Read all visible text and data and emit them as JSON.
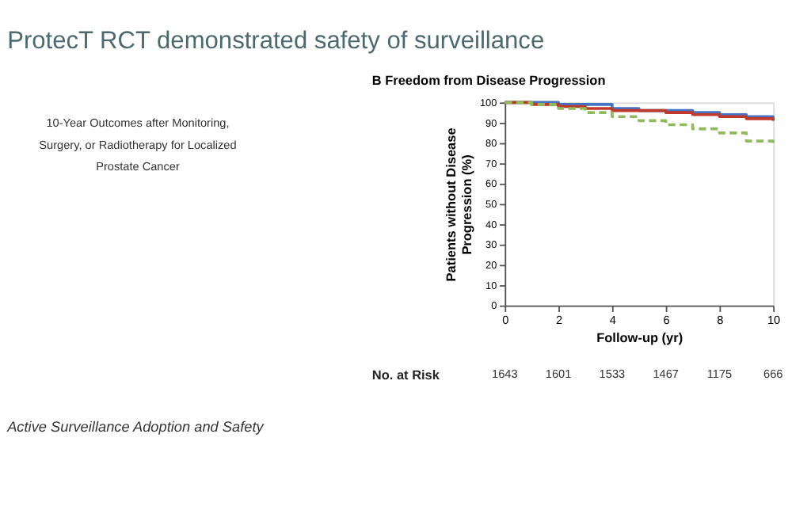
{
  "chart_data": {
    "type": "step",
    "title": "ProtecT RCT demonstrated safety of surveillance",
    "subtitle": "B   Freedom from Disease Progression",
    "xlabel": "Follow-up (yr)",
    "ylabel": "Patients without Disease Progression (%)",
    "x": [
      0,
      1,
      2,
      3,
      4,
      5,
      6,
      7,
      8,
      9,
      10
    ],
    "series": [
      {
        "color": "#4472c4",
        "line_style": "solid",
        "values": [
          100,
          100,
          99,
          99,
          97,
          96,
          96,
          95,
          94,
          93,
          92
        ]
      },
      {
        "color": "#c0392b",
        "line_style": "solid",
        "values": [
          100,
          99,
          98,
          97,
          96,
          96,
          95,
          94,
          93,
          92,
          91
        ]
      },
      {
        "color": "#8fbc5a",
        "line_style": "dashed",
        "values": [
          100,
          99,
          97,
          95,
          93,
          91,
          89,
          87,
          85,
          81,
          79
        ]
      }
    ],
    "xlim": [
      0,
      10
    ],
    "xticks": [
      0,
      2,
      4,
      6,
      8,
      10
    ],
    "ylim": [
      0,
      100
    ],
    "yticks": [
      0,
      10,
      20,
      30,
      40,
      50,
      60,
      70,
      80,
      90,
      100
    ],
    "grid": false,
    "annotations": [
      "Active Surveillance Adoption and Safety",
      "10-Year Outcomes after Monitoring, Surgery, or Radiotherapy for Localized Prostate Cancer",
      "No. at Risk",
      "1643",
      "1601",
      "1533",
      "1467",
      "1175",
      "666"
    ]
  }
}
